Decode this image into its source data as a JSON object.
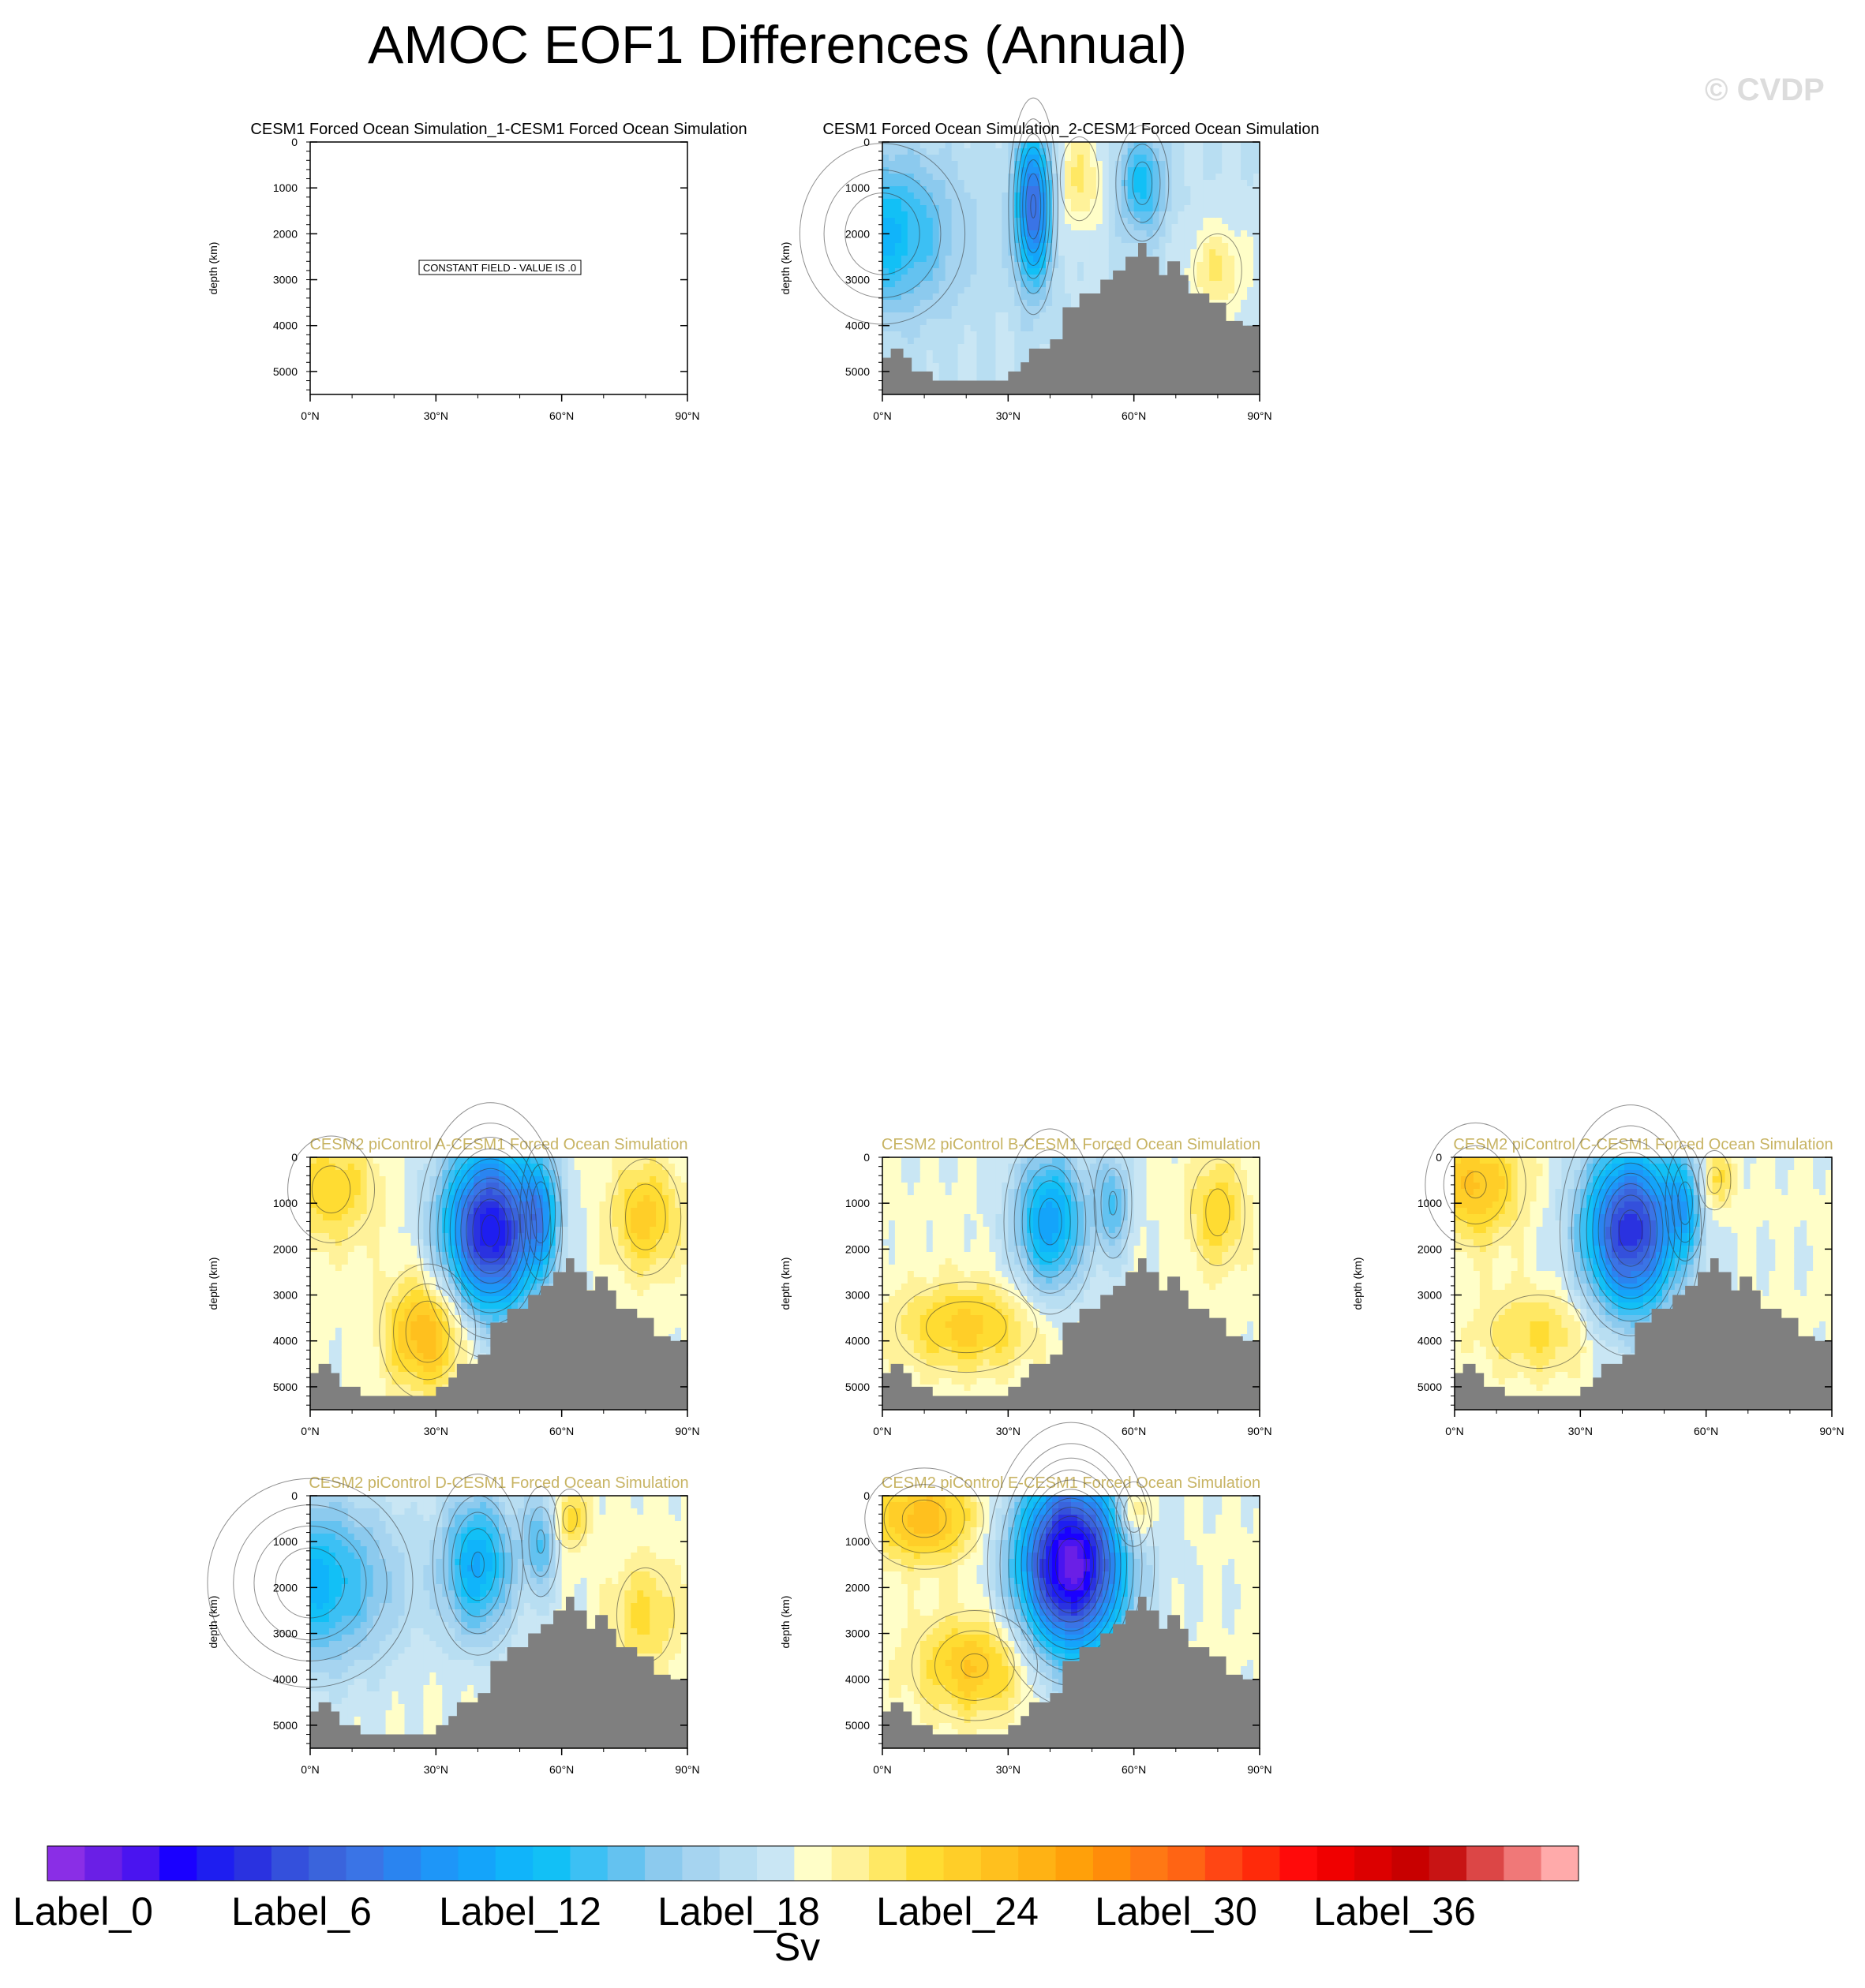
{
  "title": "AMOC EOF1 Differences (Annual)",
  "watermark": "© CVDP",
  "colorbar": {
    "units": "Sv",
    "labels": [
      "Label_0",
      "Label_6",
      "Label_12",
      "Label_18",
      "Label_24",
      "Label_30",
      "Label_36"
    ],
    "colors": [
      "#8a2ee6",
      "#6a1fe6",
      "#4a14f0",
      "#1a00ff",
      "#1e1ef0",
      "#2a32e0",
      "#3450dc",
      "#3a64dc",
      "#3a74e6",
      "#2a84f0",
      "#1e96f8",
      "#14a4fa",
      "#10b4fa",
      "#12c0f6",
      "#3cc0f4",
      "#64c2f0",
      "#8ccaee",
      "#a6d4f0",
      "#b8def2",
      "#c9e6f4",
      "#fffec8",
      "#fff29a",
      "#ffe864",
      "#ffdc32",
      "#ffce28",
      "#ffc01e",
      "#ffb214",
      "#ffa00a",
      "#ff8c0a",
      "#ff7814",
      "#ff6414",
      "#ff4614",
      "#ff2a0a",
      "#ff0a0a",
      "#f00000",
      "#dc0000",
      "#c80000",
      "#c81414",
      "#dc4646",
      "#f07878",
      "#ffaaaa"
    ]
  },
  "chart_data": [
    {
      "type": "heatmap",
      "id": "p1",
      "title": "CESM1 Forced Ocean Simulation_1-CESM1 Forced Ocean Simulation",
      "title_color": "#000000",
      "xlabel": "",
      "ylabel": "depth (km)",
      "xlim": [
        0,
        90
      ],
      "ylim": [
        5500,
        0
      ],
      "xticks": [
        "0°N",
        "30°N",
        "60°N",
        "90°N"
      ],
      "yticks": [
        "0",
        "1000",
        "2000",
        "3000",
        "4000",
        "5000"
      ],
      "annotation": "CONSTANT FIELD - VALUE IS .0",
      "constant": true
    },
    {
      "type": "heatmap",
      "id": "p2",
      "title": "CESM1 Forced Ocean Simulation_2-CESM1 Forced Ocean Simulation",
      "title_color": "#000000",
      "xlabel": "",
      "ylabel": "depth (km)",
      "xlim": [
        0,
        90
      ],
      "ylim": [
        5500,
        0
      ],
      "xticks": [
        "0°N",
        "30°N",
        "60°N",
        "90°N"
      ],
      "yticks": [
        "0",
        "1000",
        "2000",
        "3000",
        "4000",
        "5000"
      ],
      "pattern": "broad_negative",
      "features": [
        {
          "x": 36,
          "depth": 1400,
          "value": -1.8,
          "sx": 3,
          "sd": 1200
        },
        {
          "x": 62,
          "depth": 900,
          "value": -0.9,
          "sx": 4,
          "sd": 800
        },
        {
          "x": 0,
          "depth": 2000,
          "value": -1.0,
          "sx": 12,
          "sd": 1200
        },
        {
          "x": 47,
          "depth": 800,
          "value": 0.5,
          "sx": 4,
          "sd": 800
        },
        {
          "x": 80,
          "depth": 2800,
          "value": 0.5,
          "sx": 5,
          "sd": 700
        }
      ]
    },
    {
      "type": "heatmap",
      "id": "pA",
      "title": "CESM2 piControl A-CESM1 Forced Ocean Simulation",
      "title_color": "#c8b464",
      "xlabel": "",
      "ylabel": "depth (km)",
      "xlim": [
        0,
        90
      ],
      "ylim": [
        5500,
        0
      ],
      "xticks": [
        "0°N",
        "30°N",
        "60°N",
        "90°N"
      ],
      "yticks": [
        "0",
        "1000",
        "2000",
        "3000",
        "4000",
        "5000"
      ],
      "features": [
        {
          "x": 43,
          "depth": 1600,
          "value": -2.6,
          "sx": 8,
          "sd": 1300
        },
        {
          "x": 55,
          "depth": 1200,
          "value": -1.0,
          "sx": 3,
          "sd": 900
        },
        {
          "x": 28,
          "depth": 3800,
          "value": 1.0,
          "sx": 7,
          "sd": 900
        },
        {
          "x": 5,
          "depth": 700,
          "value": 0.6,
          "sx": 8,
          "sd": 900
        },
        {
          "x": 80,
          "depth": 1300,
          "value": 0.7,
          "sx": 6,
          "sd": 900
        }
      ]
    },
    {
      "type": "heatmap",
      "id": "pB",
      "title": "CESM2 piControl B-CESM1 Forced Ocean Simulation",
      "title_color": "#c8b464",
      "xlabel": "",
      "ylabel": "depth (km)",
      "xlim": [
        0,
        90
      ],
      "ylim": [
        5500,
        0
      ],
      "xticks": [
        "0°N",
        "30°N",
        "60°N",
        "90°N"
      ],
      "yticks": [
        "0",
        "1000",
        "2000",
        "3000",
        "4000",
        "5000"
      ],
      "features": [
        {
          "x": 40,
          "depth": 1400,
          "value": -1.4,
          "sx": 6,
          "sd": 1100
        },
        {
          "x": 55,
          "depth": 1000,
          "value": -0.8,
          "sx": 3,
          "sd": 800
        },
        {
          "x": 20,
          "depth": 3700,
          "value": 0.7,
          "sx": 12,
          "sd": 700
        },
        {
          "x": 80,
          "depth": 1200,
          "value": 0.6,
          "sx": 5,
          "sd": 900
        }
      ]
    },
    {
      "type": "heatmap",
      "id": "pC",
      "title": "CESM2 piControl C-CESM1 Forced Ocean Simulation",
      "title_color": "#c8b464",
      "xlabel": "",
      "ylabel": "depth (km)",
      "xlim": [
        0,
        90
      ],
      "ylim": [
        5500,
        0
      ],
      "xticks": [
        "0°N",
        "30°N",
        "60°N",
        "90°N"
      ],
      "yticks": [
        "0",
        "1000",
        "2000",
        "3000",
        "4000",
        "5000"
      ],
      "features": [
        {
          "x": 42,
          "depth": 1600,
          "value": -2.4,
          "sx": 8,
          "sd": 1300
        },
        {
          "x": 55,
          "depth": 1000,
          "value": -0.9,
          "sx": 3,
          "sd": 800
        },
        {
          "x": 5,
          "depth": 600,
          "value": 0.8,
          "sx": 8,
          "sd": 900
        },
        {
          "x": 20,
          "depth": 3800,
          "value": 0.5,
          "sx": 10,
          "sd": 700
        },
        {
          "x": 62,
          "depth": 500,
          "value": 0.6,
          "sx": 3,
          "sd": 500
        }
      ]
    },
    {
      "type": "heatmap",
      "id": "pD",
      "title": "CESM2 piControl D-CESM1 Forced Ocean Simulation",
      "title_color": "#c8b464",
      "xlabel": "",
      "ylabel": "depth (km)",
      "xlim": [
        0,
        90
      ],
      "ylim": [
        5500,
        0
      ],
      "xticks": [
        "0°N",
        "30°N",
        "60°N",
        "90°N"
      ],
      "yticks": [
        "0",
        "1000",
        "2000",
        "3000",
        "4000",
        "5000"
      ],
      "features": [
        {
          "x": 0,
          "depth": 1900,
          "value": -1.2,
          "sx": 14,
          "sd": 1300
        },
        {
          "x": 40,
          "depth": 1500,
          "value": -1.3,
          "sx": 6,
          "sd": 1100
        },
        {
          "x": 55,
          "depth": 1000,
          "value": -0.8,
          "sx": 3,
          "sd": 800
        },
        {
          "x": 62,
          "depth": 500,
          "value": 0.6,
          "sx": 3,
          "sd": 500
        },
        {
          "x": 80,
          "depth": 2600,
          "value": 0.5,
          "sx": 6,
          "sd": 900
        }
      ]
    },
    {
      "type": "heatmap",
      "id": "pE",
      "title": "CESM2 piControl E-CESM1 Forced Ocean Simulation",
      "title_color": "#c8b464",
      "xlabel": "",
      "ylabel": "depth (km)",
      "xlim": [
        0,
        90
      ],
      "ylim": [
        5500,
        0
      ],
      "xticks": [
        "0°N",
        "30°N",
        "60°N",
        "90°N"
      ],
      "yticks": [
        "0",
        "1000",
        "2000",
        "3000",
        "4000",
        "5000"
      ],
      "features": [
        {
          "x": 45,
          "depth": 1500,
          "value": -3.0,
          "sx": 9,
          "sd": 1400
        },
        {
          "x": 10,
          "depth": 500,
          "value": 0.9,
          "sx": 9,
          "sd": 700
        },
        {
          "x": 22,
          "depth": 3700,
          "value": 0.8,
          "sx": 10,
          "sd": 800
        },
        {
          "x": 60,
          "depth": 400,
          "value": 0.7,
          "sx": 3,
          "sd": 500
        }
      ]
    }
  ]
}
